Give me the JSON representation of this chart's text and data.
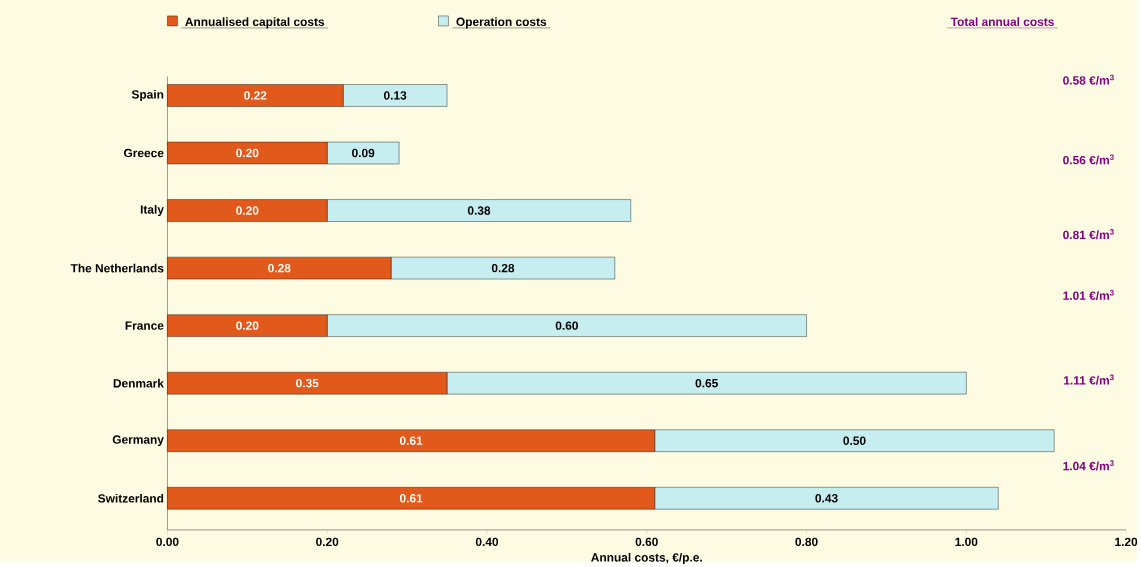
{
  "chart_data": {
    "type": "bar",
    "orientation": "horizontal",
    "stacked": true,
    "categories": [
      "Spain",
      "Greece",
      "Italy",
      "The Netherlands",
      "France",
      "Denmark",
      "Germany",
      "Switzerland"
    ],
    "series": [
      {
        "name": "Annualised capital costs",
        "color": "#e2591c",
        "values": [
          0.22,
          0.2,
          0.2,
          0.28,
          0.2,
          0.35,
          0.61,
          0.61
        ],
        "value_labels": [
          "0.22",
          "0.20",
          "0.20",
          "0.28",
          "0.20",
          "0.35",
          "0.61",
          "0.61"
        ]
      },
      {
        "name": "Operation costs",
        "color": "#c6eef0",
        "values": [
          0.13,
          0.09,
          0.38,
          0.28,
          0.6,
          0.65,
          0.5,
          0.43
        ],
        "value_labels": [
          "0.13",
          "0.09",
          "0.38",
          "0.28",
          "0.60",
          "0.65",
          "0.50",
          "0.43"
        ]
      }
    ],
    "xlabel": "Annual costs, €/p.e.",
    "legend": "top left",
    "xlim": [
      0,
      1.2
    ],
    "xticks": [
      {
        "value": 0,
        "label": "0.00"
      },
      {
        "value": 0.2,
        "label": "0.20"
      },
      {
        "value": 0.4,
        "label": "0.40"
      },
      {
        "value": 0.6,
        "label": "0.60"
      },
      {
        "value": 0.8,
        "label": "0.80"
      },
      {
        "value": 1.0,
        "label": "1.00"
      },
      {
        "value": 1.2,
        "label": "1.20"
      }
    ],
    "annotations": [
      "Total annual costs",
      "0.58 €/m$^{3}$",
      "0.56 €/m$^{3}$",
      "0.81 €/m$^{3}$",
      "1.01 €/m$^{3}$",
      "1.11 €/m$^{3}$",
      "1.04 €/m$^{3}$"
    ]
  }
}
